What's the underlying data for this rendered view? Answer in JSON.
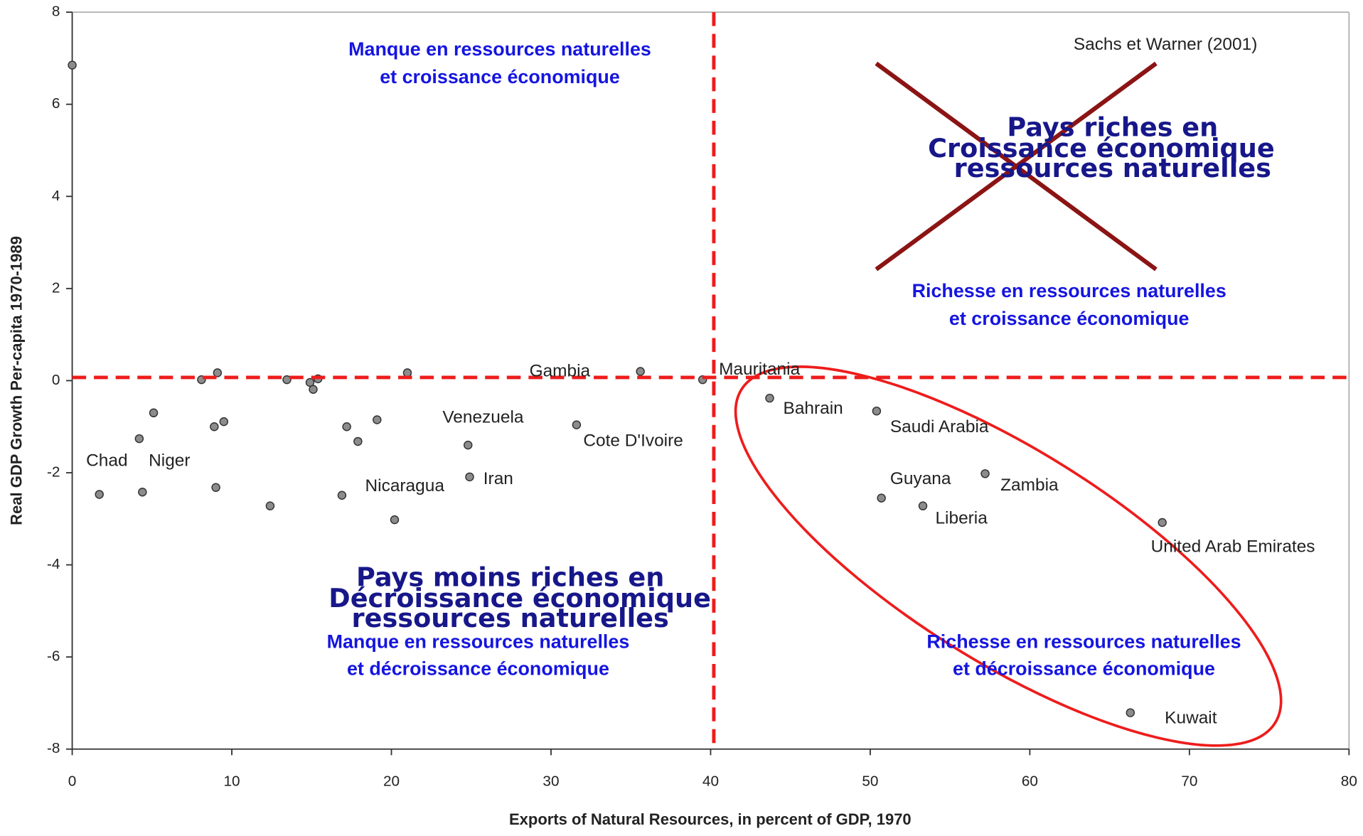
{
  "chart_data": {
    "type": "scatter",
    "x_label": "Exports of Natural Resources, in percent of GDP, 1970",
    "y_label": "Real GDP Growth Per-capita 1970-1989",
    "xlim": [
      0,
      80
    ],
    "ylim": [
      -8,
      8
    ],
    "xticks": [
      0,
      10,
      20,
      30,
      40,
      50,
      60,
      70,
      80
    ],
    "yticks": [
      -8,
      -6,
      -4,
      -2,
      0,
      2,
      4,
      6,
      8
    ],
    "color": "#8c8c8c",
    "series": [
      {
        "x": [
          0,
          8.1,
          9.1,
          13.45,
          14.9,
          15.1,
          15.4,
          21.0,
          35.6,
          39.5,
          5.1,
          4.2,
          8.9,
          9.5,
          1.7,
          4.4,
          9.0,
          12.4,
          16.9,
          17.2,
          17.9,
          19.1,
          20.2,
          24.8,
          24.9,
          31.6,
          43.7,
          50.4,
          50.7,
          53.3,
          57.2,
          68.3,
          66.3
        ],
        "values": [
          6.85,
          0.02,
          0.17,
          0.02,
          -0.04,
          -0.19,
          0.04,
          0.17,
          0.2,
          0.02,
          -0.7,
          -1.26,
          -1.0,
          -0.89,
          -2.47,
          -2.42,
          -2.32,
          -2.72,
          -2.49,
          -1.0,
          -1.32,
          -0.85,
          -3.02,
          -1.4,
          -2.09,
          -0.96,
          -0.38,
          -0.66,
          -2.55,
          -2.72,
          -2.02,
          -3.08,
          -7.21
        ]
      }
    ],
    "quadrant_lines": {
      "x": 40.2,
      "y": 0.07,
      "color": "#ee1c1c"
    },
    "point_labels": [
      "Chad",
      "Niger",
      "Venezuela",
      "Cote D'Ivoire",
      "Nicaragua",
      "Iran",
      "Gambia",
      "Mauritania",
      "Bahrain",
      "Saudi Arabia",
      "Guyana",
      "Zambia",
      "Liberia",
      "United Arab Emirates",
      "Kuwait"
    ],
    "source": "Sachs et Warner (2001)",
    "quadrant_labels": [
      "Manque en ressources naturelles",
      "et croissance économique",
      "Richesse  en ressources naturelles",
      "et croissance économique",
      "Manque  en ressources naturelles",
      "et décroissance économique",
      "Richesse en ressources naturelles",
      "et décroissance économique"
    ],
    "overlay_labels": [
      "Pays riches en",
      "Croissance économique",
      "ressources naturelles",
      "Pays moins riches en",
      "Décroissance économique",
      "ressources naturelles"
    ]
  }
}
